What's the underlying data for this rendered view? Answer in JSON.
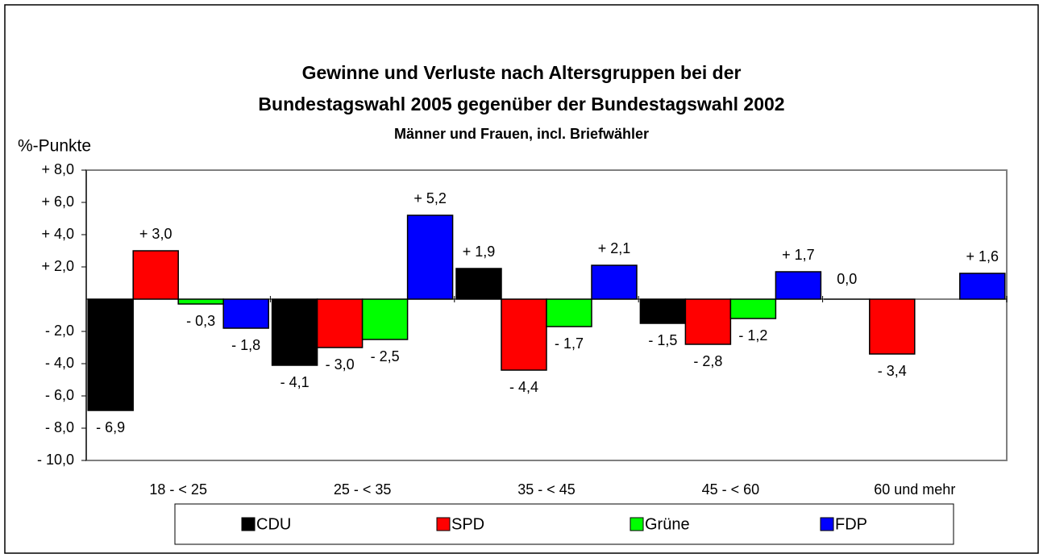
{
  "chart_data": {
    "type": "bar",
    "title": [
      "Gewinne und Verluste nach Altersgruppen bei der",
      "Bundestagswahl 2005 gegenüber der Bundestagswahl 2002"
    ],
    "subtitle": "Männer und Frauen, incl. Briefwähler",
    "y_label": "%-Punkte",
    "categories": [
      "18 - < 25",
      "25 - < 35",
      "35 - < 45",
      "45 - < 60",
      "60 und mehr"
    ],
    "series": [
      {
        "name": "CDU",
        "color": "#000000",
        "values": [
          -6.9,
          -4.1,
          1.9,
          -1.5,
          0.0
        ],
        "value_labels": [
          "- 6,9",
          "- 4,1",
          "+ 1,9",
          "- 1,5",
          "0,0"
        ]
      },
      {
        "name": "SPD",
        "color": "#ff0000",
        "values": [
          3.0,
          -3.0,
          -4.4,
          -2.8,
          -3.4
        ],
        "value_labels": [
          "+ 3,0",
          "- 3,0",
          "- 4,4",
          "- 2,8",
          "- 3,4"
        ]
      },
      {
        "name": "Grüne",
        "color": "#00ff00",
        "values": [
          -0.3,
          -2.5,
          -1.7,
          -1.2,
          null
        ],
        "value_labels": [
          "- 0,3",
          "- 2,5",
          "- 1,7",
          "- 1,2",
          null
        ]
      },
      {
        "name": "FDP",
        "color": "#0000ff",
        "values": [
          -1.8,
          5.2,
          2.1,
          1.7,
          1.6
        ],
        "value_labels": [
          "- 1,8",
          "+ 5,2",
          "+ 2,1",
          "+ 1,7",
          "+ 1,6"
        ]
      }
    ],
    "ylim": [
      -10,
      8
    ],
    "yticks": [
      {
        "value": -10,
        "label": "- 10,0"
      },
      {
        "value": -8,
        "label": "- 8,0"
      },
      {
        "value": -6,
        "label": "- 6,0"
      },
      {
        "value": -4,
        "label": "- 4,0"
      },
      {
        "value": -2,
        "label": "- 2,0"
      },
      {
        "value": 2,
        "label": "+ 2,0"
      },
      {
        "value": 4,
        "label": "+ 4,0"
      },
      {
        "value": 6,
        "label": "+ 6,0"
      },
      {
        "value": 8,
        "label": "+ 8,0"
      }
    ],
    "legend": "bottom"
  }
}
